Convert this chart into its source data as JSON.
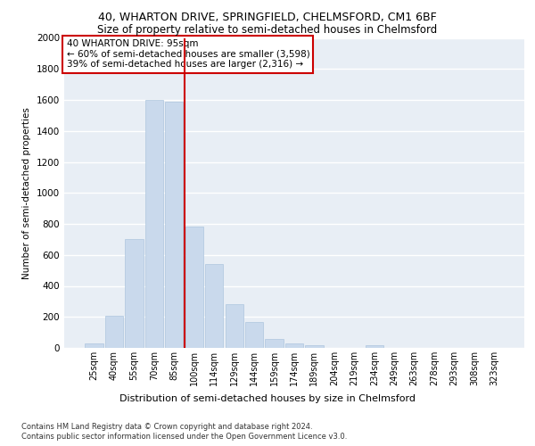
{
  "title": "40, WHARTON DRIVE, SPRINGFIELD, CHELMSFORD, CM1 6BF",
  "subtitle": "Size of property relative to semi-detached houses in Chelmsford",
  "xlabel": "Distribution of semi-detached houses by size in Chelmsford",
  "ylabel": "Number of semi-detached properties",
  "categories": [
    "25sqm",
    "40sqm",
    "55sqm",
    "70sqm",
    "85sqm",
    "100sqm",
    "114sqm",
    "129sqm",
    "144sqm",
    "159sqm",
    "174sqm",
    "189sqm",
    "204sqm",
    "219sqm",
    "234sqm",
    "249sqm",
    "263sqm",
    "278sqm",
    "293sqm",
    "308sqm",
    "323sqm"
  ],
  "values": [
    30,
    210,
    700,
    1600,
    1590,
    780,
    540,
    280,
    165,
    60,
    30,
    20,
    0,
    0,
    20,
    0,
    0,
    0,
    0,
    0,
    0
  ],
  "bar_color": "#c9d9ec",
  "bar_edge_color": "#aec6de",
  "vline_color": "#cc0000",
  "annotation_text": "40 WHARTON DRIVE: 95sqm\n← 60% of semi-detached houses are smaller (3,598)\n39% of semi-detached houses are larger (2,316) →",
  "annotation_box_color": "#ffffff",
  "annotation_box_edge_color": "#cc0000",
  "ylim": [
    0,
    2000
  ],
  "yticks": [
    0,
    200,
    400,
    600,
    800,
    1000,
    1200,
    1400,
    1600,
    1800,
    2000
  ],
  "background_color": "#e8eef5",
  "grid_color": "#ffffff",
  "footer_line1": "Contains HM Land Registry data © Crown copyright and database right 2024.",
  "footer_line2": "Contains public sector information licensed under the Open Government Licence v3.0.",
  "title_fontsize": 9,
  "subtitle_fontsize": 8.5
}
